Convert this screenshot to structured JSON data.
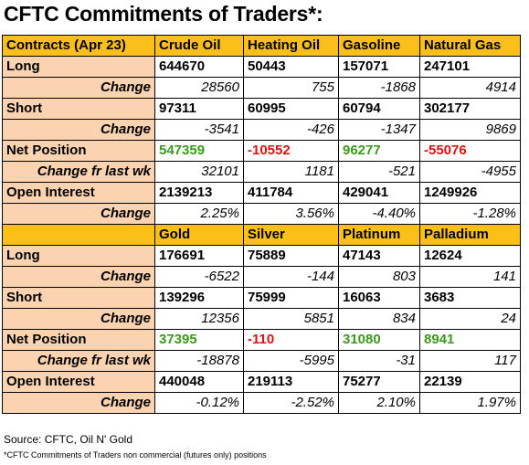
{
  "title": "CFTC Commitments of Traders*:",
  "section1": {
    "header": [
      "Contracts (Apr 23)",
      "Crude Oil",
      "Heating Oil",
      "Gasoline",
      "Natural Gas"
    ],
    "rows": [
      {
        "label": "Long",
        "values": [
          "644670",
          "50443",
          "157071",
          "247101"
        ]
      },
      {
        "label": "Change",
        "values": [
          "28560",
          "755",
          "-1868",
          "4914"
        ]
      },
      {
        "label": "Short",
        "values": [
          "97311",
          "60995",
          "60794",
          "302177"
        ]
      },
      {
        "label": "Change",
        "values": [
          "-3541",
          "-426",
          "-1347",
          "9869"
        ]
      },
      {
        "label": "Net Position",
        "values": [
          "547359",
          "-10552",
          "96277",
          "-55076"
        ]
      },
      {
        "label": "Change fr last wk",
        "values": [
          "32101",
          "1181",
          "-521",
          "-4955"
        ]
      },
      {
        "label": "Open Interest",
        "values": [
          "2139213",
          "411784",
          "429041",
          "1249926"
        ]
      },
      {
        "label": "Change",
        "values": [
          "2.25%",
          "3.56%",
          "-4.40%",
          "-1.28%"
        ]
      }
    ]
  },
  "section2": {
    "header": [
      "",
      "Gold",
      "Silver",
      "Platinum",
      "Palladium"
    ],
    "rows": [
      {
        "label": "Long",
        "values": [
          "176691",
          "75889",
          "47143",
          "12624"
        ]
      },
      {
        "label": "Change",
        "values": [
          "-6522",
          "-144",
          "803",
          "141"
        ]
      },
      {
        "label": "Short",
        "values": [
          "139296",
          "75999",
          "16063",
          "3683"
        ]
      },
      {
        "label": "Change",
        "values": [
          "12356",
          "5851",
          "834",
          "24"
        ]
      },
      {
        "label": "Net Position",
        "values": [
          "37395",
          "-110",
          "31080",
          "8941"
        ]
      },
      {
        "label": "Change fr last wk",
        "values": [
          "-18878",
          "-5995",
          "-31",
          "117"
        ]
      },
      {
        "label": "Open Interest",
        "values": [
          "440048",
          "219113",
          "75277",
          "22139"
        ]
      },
      {
        "label": "Change",
        "values": [
          "-0.12%",
          "-2.52%",
          "2.10%",
          "1.97%"
        ]
      }
    ]
  },
  "colors": {
    "header_bg": "#fbbf1a",
    "label_bg": "#fbd3b0",
    "positive": "#3a9a1a",
    "negative": "#e01010"
  },
  "source": "Source: CFTC, Oil N' Gold",
  "footnote": "*CFTC Commitments of Traders non commercial (futures only) positions"
}
